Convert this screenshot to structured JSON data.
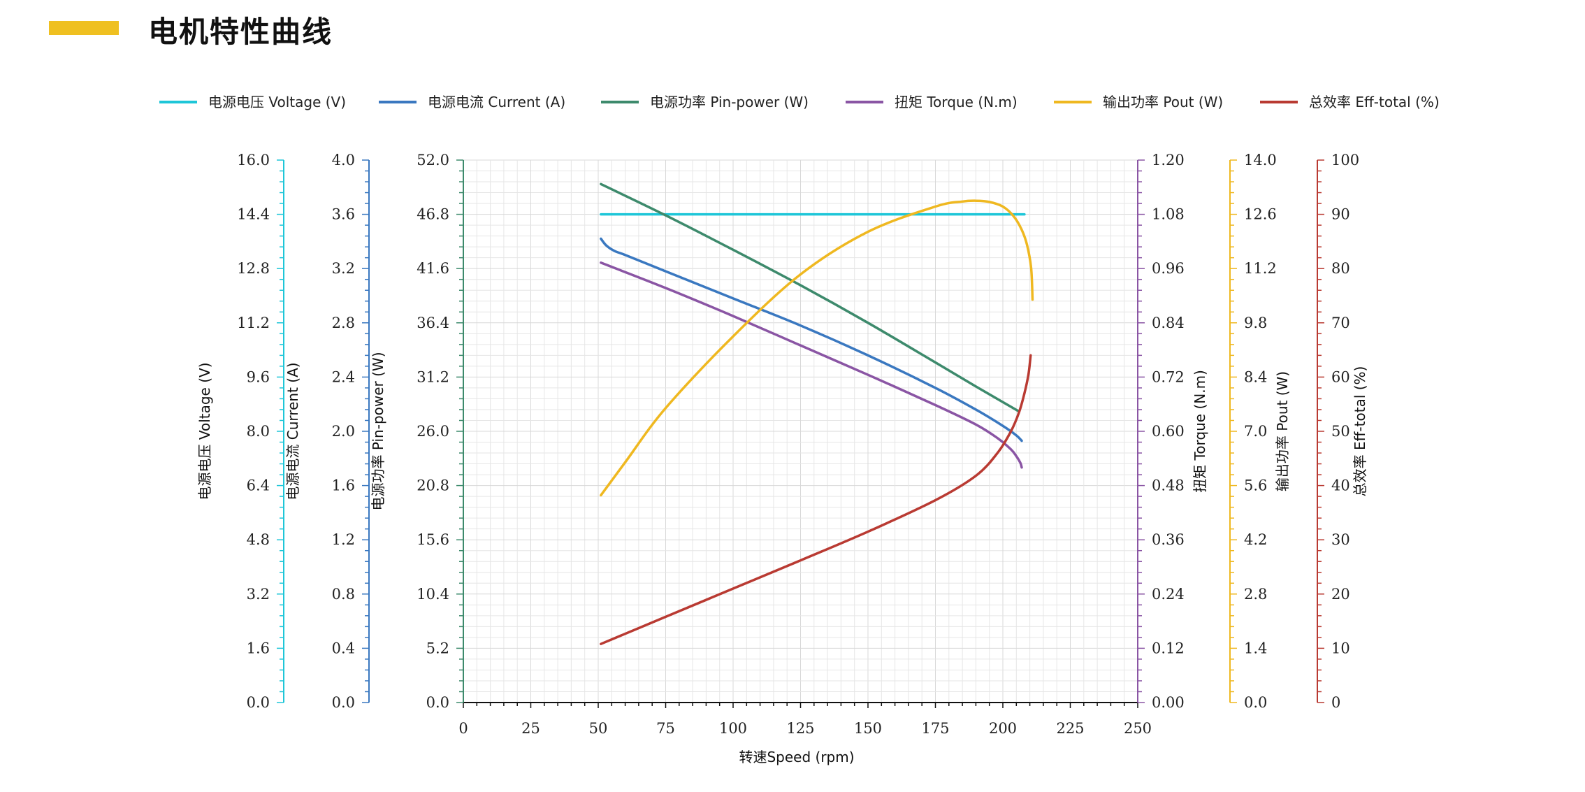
{
  "header": {
    "title": "电机特性曲线",
    "accent_color": "#efc021"
  },
  "chart_data": {
    "type": "line",
    "title": "电机特性曲线",
    "xlabel": "转速Speed (rpm)",
    "x_ticks": [
      "0",
      "25",
      "50",
      "75",
      "100",
      "125",
      "150",
      "175",
      "200",
      "225",
      "250"
    ],
    "xlim": [
      0,
      250
    ],
    "grid": true,
    "legend_position": "top",
    "axes": [
      {
        "id": "voltage",
        "label": "电源电压 Voltage (V)",
        "color": "#1ec6d8",
        "side": "left",
        "range": [
          0,
          16
        ],
        "ticks": [
          "0.0",
          "1.6",
          "3.2",
          "4.8",
          "6.4",
          "8.0",
          "9.6",
          "11.2",
          "12.8",
          "14.4",
          "16.0"
        ]
      },
      {
        "id": "current",
        "label": "电源电流 Current (A)",
        "color": "#3a78c0",
        "side": "left",
        "range": [
          0,
          4
        ],
        "ticks": [
          "0.0",
          "0.4",
          "0.8",
          "1.2",
          "1.6",
          "2.0",
          "2.4",
          "2.8",
          "3.2",
          "3.6",
          "4.0"
        ]
      },
      {
        "id": "pin",
        "label": "电源功率 Pin-power (W)",
        "color": "#3d8a6c",
        "side": "left",
        "range": [
          0,
          52
        ],
        "ticks": [
          "0.0",
          "5.2",
          "10.4",
          "15.6",
          "20.8",
          "26.0",
          "31.2",
          "36.4",
          "41.6",
          "46.8",
          "52.0"
        ]
      },
      {
        "id": "torque",
        "label": "扭矩 Torque (N.m)",
        "color": "#8a55a4",
        "side": "right",
        "range": [
          0,
          1.2
        ],
        "ticks": [
          "0.00",
          "0.12",
          "0.24",
          "0.36",
          "0.48",
          "0.60",
          "0.72",
          "0.84",
          "0.96",
          "1.08",
          "1.20"
        ]
      },
      {
        "id": "pout",
        "label": "输出功率 Pout (W)",
        "color": "#efb820",
        "side": "right",
        "range": [
          0,
          14
        ],
        "ticks": [
          "0.0",
          "1.4",
          "2.8",
          "4.2",
          "5.6",
          "7.0",
          "8.4",
          "9.8",
          "11.2",
          "12.6",
          "14.0"
        ]
      },
      {
        "id": "eff",
        "label": "总效率 Eff-total (%)",
        "color": "#b93a32",
        "side": "right",
        "range": [
          0,
          100
        ],
        "ticks": [
          "0",
          "10",
          "20",
          "30",
          "40",
          "50",
          "60",
          "70",
          "80",
          "90",
          "100"
        ]
      }
    ],
    "series": [
      {
        "name": "电源电压 Voltage (V)",
        "axis": "voltage",
        "color": "#1ec6d8",
        "points": [
          [
            51,
            14.4
          ],
          [
            100,
            14.4
          ],
          [
            150,
            14.4
          ],
          [
            208,
            14.4
          ]
        ]
      },
      {
        "name": "电源电流 Current (A)",
        "axis": "current",
        "color": "#3a78c0",
        "points": [
          [
            51,
            3.42
          ],
          [
            53,
            3.37
          ],
          [
            56,
            3.33
          ],
          [
            60,
            3.3
          ],
          [
            75,
            3.18
          ],
          [
            100,
            2.98
          ],
          [
            125,
            2.78
          ],
          [
            150,
            2.56
          ],
          [
            175,
            2.32
          ],
          [
            190,
            2.16
          ],
          [
            200,
            2.04
          ],
          [
            205,
            1.97
          ],
          [
            207,
            1.93
          ]
        ]
      },
      {
        "name": "电源功率 Pin-power (W)",
        "axis": "pin",
        "color": "#3d8a6c",
        "points": [
          [
            51,
            49.7
          ],
          [
            75,
            46.7
          ],
          [
            100,
            43.4
          ],
          [
            125,
            40.0
          ],
          [
            150,
            36.4
          ],
          [
            175,
            32.6
          ],
          [
            190,
            30.3
          ],
          [
            200,
            28.8
          ],
          [
            206,
            27.9
          ]
        ]
      },
      {
        "name": "扭矩 Torque (N.m)",
        "axis": "torque",
        "color": "#8a55a4",
        "points": [
          [
            51,
            0.973
          ],
          [
            75,
            0.917
          ],
          [
            100,
            0.855
          ],
          [
            125,
            0.79
          ],
          [
            150,
            0.725
          ],
          [
            175,
            0.658
          ],
          [
            190,
            0.615
          ],
          [
            198,
            0.585
          ],
          [
            203,
            0.56
          ],
          [
            205,
            0.545
          ],
          [
            206.5,
            0.53
          ],
          [
            207,
            0.52
          ]
        ]
      },
      {
        "name": "输出功率 Pout (W)",
        "axis": "pout",
        "color": "#efb820",
        "points": [
          [
            51,
            5.35
          ],
          [
            60,
            6.2
          ],
          [
            75,
            7.6
          ],
          [
            100,
            9.45
          ],
          [
            125,
            11.05
          ],
          [
            150,
            12.15
          ],
          [
            175,
            12.8
          ],
          [
            185,
            12.93
          ],
          [
            190,
            12.95
          ],
          [
            195,
            12.92
          ],
          [
            200,
            12.8
          ],
          [
            204,
            12.55
          ],
          [
            207,
            12.2
          ],
          [
            209,
            11.8
          ],
          [
            210.5,
            11.2
          ],
          [
            211,
            10.4
          ]
        ]
      },
      {
        "name": "总效率 Eff-total (%)",
        "axis": "eff",
        "color": "#b93a32",
        "points": [
          [
            51,
            10.8
          ],
          [
            75,
            15.8
          ],
          [
            100,
            21.0
          ],
          [
            125,
            26.2
          ],
          [
            150,
            31.5
          ],
          [
            175,
            37.3
          ],
          [
            190,
            41.8
          ],
          [
            198,
            46.0
          ],
          [
            203,
            50.0
          ],
          [
            206,
            53.5
          ],
          [
            208,
            57.0
          ],
          [
            209.5,
            60.5
          ],
          [
            210.3,
            64.0
          ]
        ]
      }
    ]
  }
}
